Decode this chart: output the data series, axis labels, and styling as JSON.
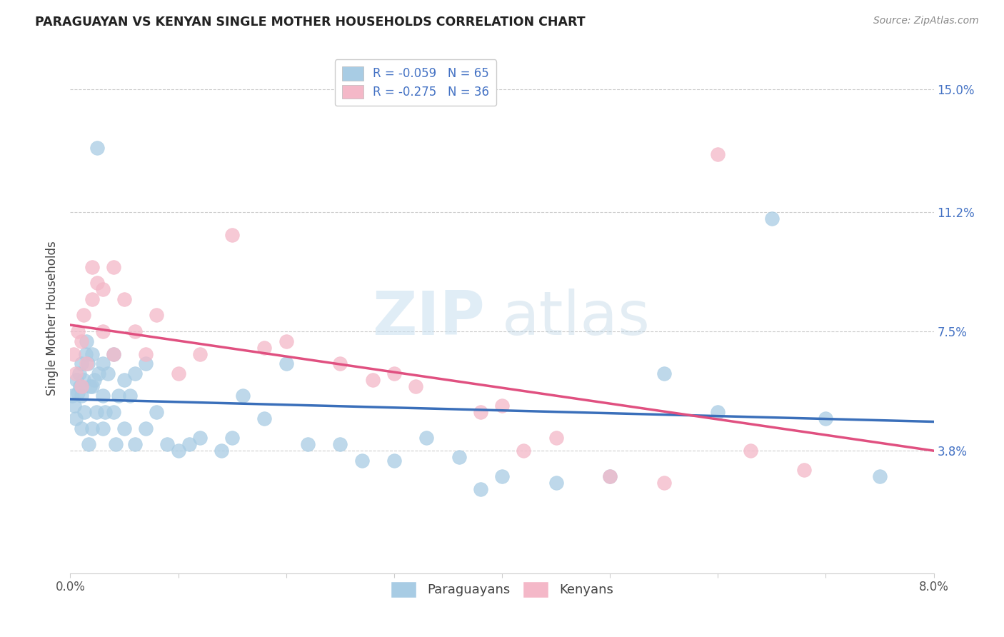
{
  "title": "PARAGUAYAN VS KENYAN SINGLE MOTHER HOUSEHOLDS CORRELATION CHART",
  "source": "Source: ZipAtlas.com",
  "ylabel": "Single Mother Households",
  "yticks": [
    3.8,
    7.5,
    11.2,
    15.0
  ],
  "ytick_labels": [
    "3.8%",
    "7.5%",
    "11.2%",
    "15.0%"
  ],
  "xmin": 0.0,
  "xmax": 0.08,
  "ymin": 0.0,
  "ymax": 0.158,
  "legend_blue": "R = -0.059   N = 65",
  "legend_pink": "R = -0.275   N = 36",
  "blue_color": "#a8cce4",
  "pink_color": "#f4b8c8",
  "blue_line_color": "#3a6fba",
  "pink_line_color": "#e05080",
  "watermark_zip": "ZIP",
  "watermark_atlas": "atlas",
  "blue_scatter_x": [
    0.0002,
    0.0004,
    0.0005,
    0.0006,
    0.0007,
    0.0008,
    0.0009,
    0.001,
    0.001,
    0.001,
    0.0012,
    0.0013,
    0.0014,
    0.0015,
    0.0016,
    0.0017,
    0.0018,
    0.002,
    0.002,
    0.002,
    0.0022,
    0.0024,
    0.0025,
    0.0026,
    0.003,
    0.003,
    0.003,
    0.0032,
    0.0035,
    0.004,
    0.004,
    0.0042,
    0.0045,
    0.005,
    0.005,
    0.0055,
    0.006,
    0.006,
    0.007,
    0.007,
    0.008,
    0.009,
    0.01,
    0.011,
    0.012,
    0.014,
    0.015,
    0.016,
    0.018,
    0.02,
    0.022,
    0.025,
    0.027,
    0.03,
    0.033,
    0.036,
    0.038,
    0.04,
    0.045,
    0.05,
    0.055,
    0.06,
    0.065,
    0.07,
    0.075
  ],
  "blue_scatter_y": [
    0.055,
    0.052,
    0.048,
    0.06,
    0.056,
    0.062,
    0.058,
    0.065,
    0.055,
    0.045,
    0.06,
    0.05,
    0.068,
    0.072,
    0.065,
    0.04,
    0.058,
    0.068,
    0.058,
    0.045,
    0.06,
    0.05,
    0.132,
    0.062,
    0.065,
    0.055,
    0.045,
    0.05,
    0.062,
    0.068,
    0.05,
    0.04,
    0.055,
    0.06,
    0.045,
    0.055,
    0.062,
    0.04,
    0.065,
    0.045,
    0.05,
    0.04,
    0.038,
    0.04,
    0.042,
    0.038,
    0.042,
    0.055,
    0.048,
    0.065,
    0.04,
    0.04,
    0.035,
    0.035,
    0.042,
    0.036,
    0.026,
    0.03,
    0.028,
    0.03,
    0.062,
    0.05,
    0.11,
    0.048,
    0.03
  ],
  "pink_scatter_x": [
    0.0003,
    0.0005,
    0.0007,
    0.001,
    0.001,
    0.0012,
    0.0015,
    0.002,
    0.002,
    0.0025,
    0.003,
    0.003,
    0.004,
    0.004,
    0.005,
    0.006,
    0.007,
    0.008,
    0.01,
    0.012,
    0.015,
    0.018,
    0.02,
    0.025,
    0.028,
    0.03,
    0.032,
    0.038,
    0.04,
    0.042,
    0.045,
    0.05,
    0.055,
    0.06,
    0.063,
    0.068
  ],
  "pink_scatter_y": [
    0.068,
    0.062,
    0.075,
    0.058,
    0.072,
    0.08,
    0.065,
    0.095,
    0.085,
    0.09,
    0.088,
    0.075,
    0.068,
    0.095,
    0.085,
    0.075,
    0.068,
    0.08,
    0.062,
    0.068,
    0.105,
    0.07,
    0.072,
    0.065,
    0.06,
    0.062,
    0.058,
    0.05,
    0.052,
    0.038,
    0.042,
    0.03,
    0.028,
    0.13,
    0.038,
    0.032
  ],
  "blue_line_start_y": 0.054,
  "blue_line_end_y": 0.047,
  "pink_line_start_y": 0.077,
  "pink_line_end_y": 0.038
}
